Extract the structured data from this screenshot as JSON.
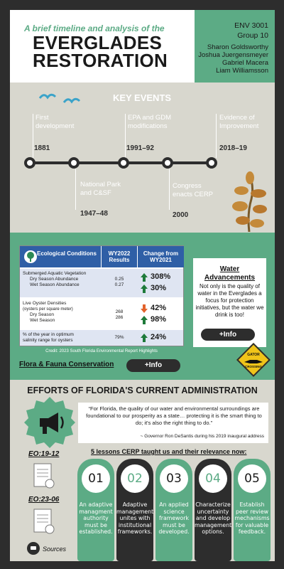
{
  "header": {
    "subtitle": "A brief timeline and analysis of the",
    "title_line1": "EVERGLADES",
    "title_line2": "RESTORATION",
    "course": "ENV 3001",
    "group": "Group 10",
    "authors": [
      "Sharon Goldsworthy",
      "Joshua Juergensmeyer",
      "Gabriel Macera",
      "Liam Williamsson"
    ]
  },
  "timeline": {
    "title": "KEY EVENTS",
    "events_top": [
      {
        "label_1": "First",
        "label_2": "development",
        "year": "1881"
      },
      {
        "label_1": "EPA and GDM",
        "label_2": "modifications",
        "year": "1991–92"
      },
      {
        "label_1": "Evidence of",
        "label_2": "Improvement",
        "year": "2018–19"
      }
    ],
    "events_bottom": [
      {
        "label_1": "National Park",
        "label_2": "and C&SF",
        "year": "1947–48"
      },
      {
        "label_1": "Congress",
        "label_2": "enacts CERP",
        "year": "2000"
      }
    ]
  },
  "table": {
    "headers": [
      "Ecological Conditions",
      "WY2022 Results",
      "Change from WY2021"
    ],
    "sections": [
      {
        "title": "Submerged Aquatic Vegetation",
        "rows": [
          {
            "label": "Dry Season Abundance",
            "value": "0.25",
            "change": "308%",
            "direction": "up"
          },
          {
            "label": "Wet Season Abundance",
            "value": "0.27",
            "change": "30%",
            "direction": "up"
          }
        ]
      },
      {
        "title": "Live Oyster Densities",
        "subtitle": "(oysters per square meter)",
        "rows": [
          {
            "label": "Dry Season",
            "value": "268",
            "change": "42%",
            "direction": "down"
          },
          {
            "label": "Wet Season",
            "value": "286",
            "change": "98%",
            "direction": "up"
          }
        ]
      },
      {
        "title": "% of the year in optimum",
        "title_2": "salinity range for oysters",
        "rows": [
          {
            "label": "",
            "value": "79%",
            "change": "24%",
            "direction": "up"
          }
        ]
      }
    ],
    "credit": "Credit: 2023 South Florida Environmental Report Highlights"
  },
  "flora": {
    "label": "Flora & Fauna Conservation",
    "button": "+Info"
  },
  "water": {
    "title_1": "Water",
    "title_2": "Advancements",
    "text": "Not only is the quality of water in the Everglades a focus for protection initiatives, but the water we drink is too!",
    "button": "+Info"
  },
  "gator_sign": {
    "line_1": "GATOR",
    "line_2": "CROSSING"
  },
  "efforts": {
    "title": "EFFORTS OF FLORIDA'S CURRENT ADMINISTRATION",
    "quote": "“For Florida, the quality of our water and environmental surroundings are foundational to our prosperity as a state… protecting it is the smart thing to do; it's also the right thing to do.”",
    "cite": "~ Governor Ron DeSantis during his 2019 inaugural address",
    "lessons_title": "5 lessons CERP taught us and their relevance now:",
    "orders": [
      "EO:19-12",
      "EO:23-06"
    ],
    "sources": "Sources",
    "lessons": [
      {
        "num": "01",
        "text": "An adaptive managment authority must be established.",
        "color": "#5cab85"
      },
      {
        "num": "02",
        "text": "Adaptive management unites with institutional frameworks.",
        "color": "#2d2d2d"
      },
      {
        "num": "03",
        "text": "An applied science framework must be developed.",
        "color": "#5cab85"
      },
      {
        "num": "04",
        "text": "Characterize uncertainty and develop management options.",
        "color": "#2d2d2d"
      },
      {
        "num": "05",
        "text": "Establish peer review mechanisms for valuable feedback.",
        "color": "#5cab85"
      }
    ]
  },
  "colors": {
    "green": "#5cab85",
    "dark": "#2d2d2d",
    "beige": "#d8d7ce",
    "table_blue": "#2f5fa6"
  }
}
